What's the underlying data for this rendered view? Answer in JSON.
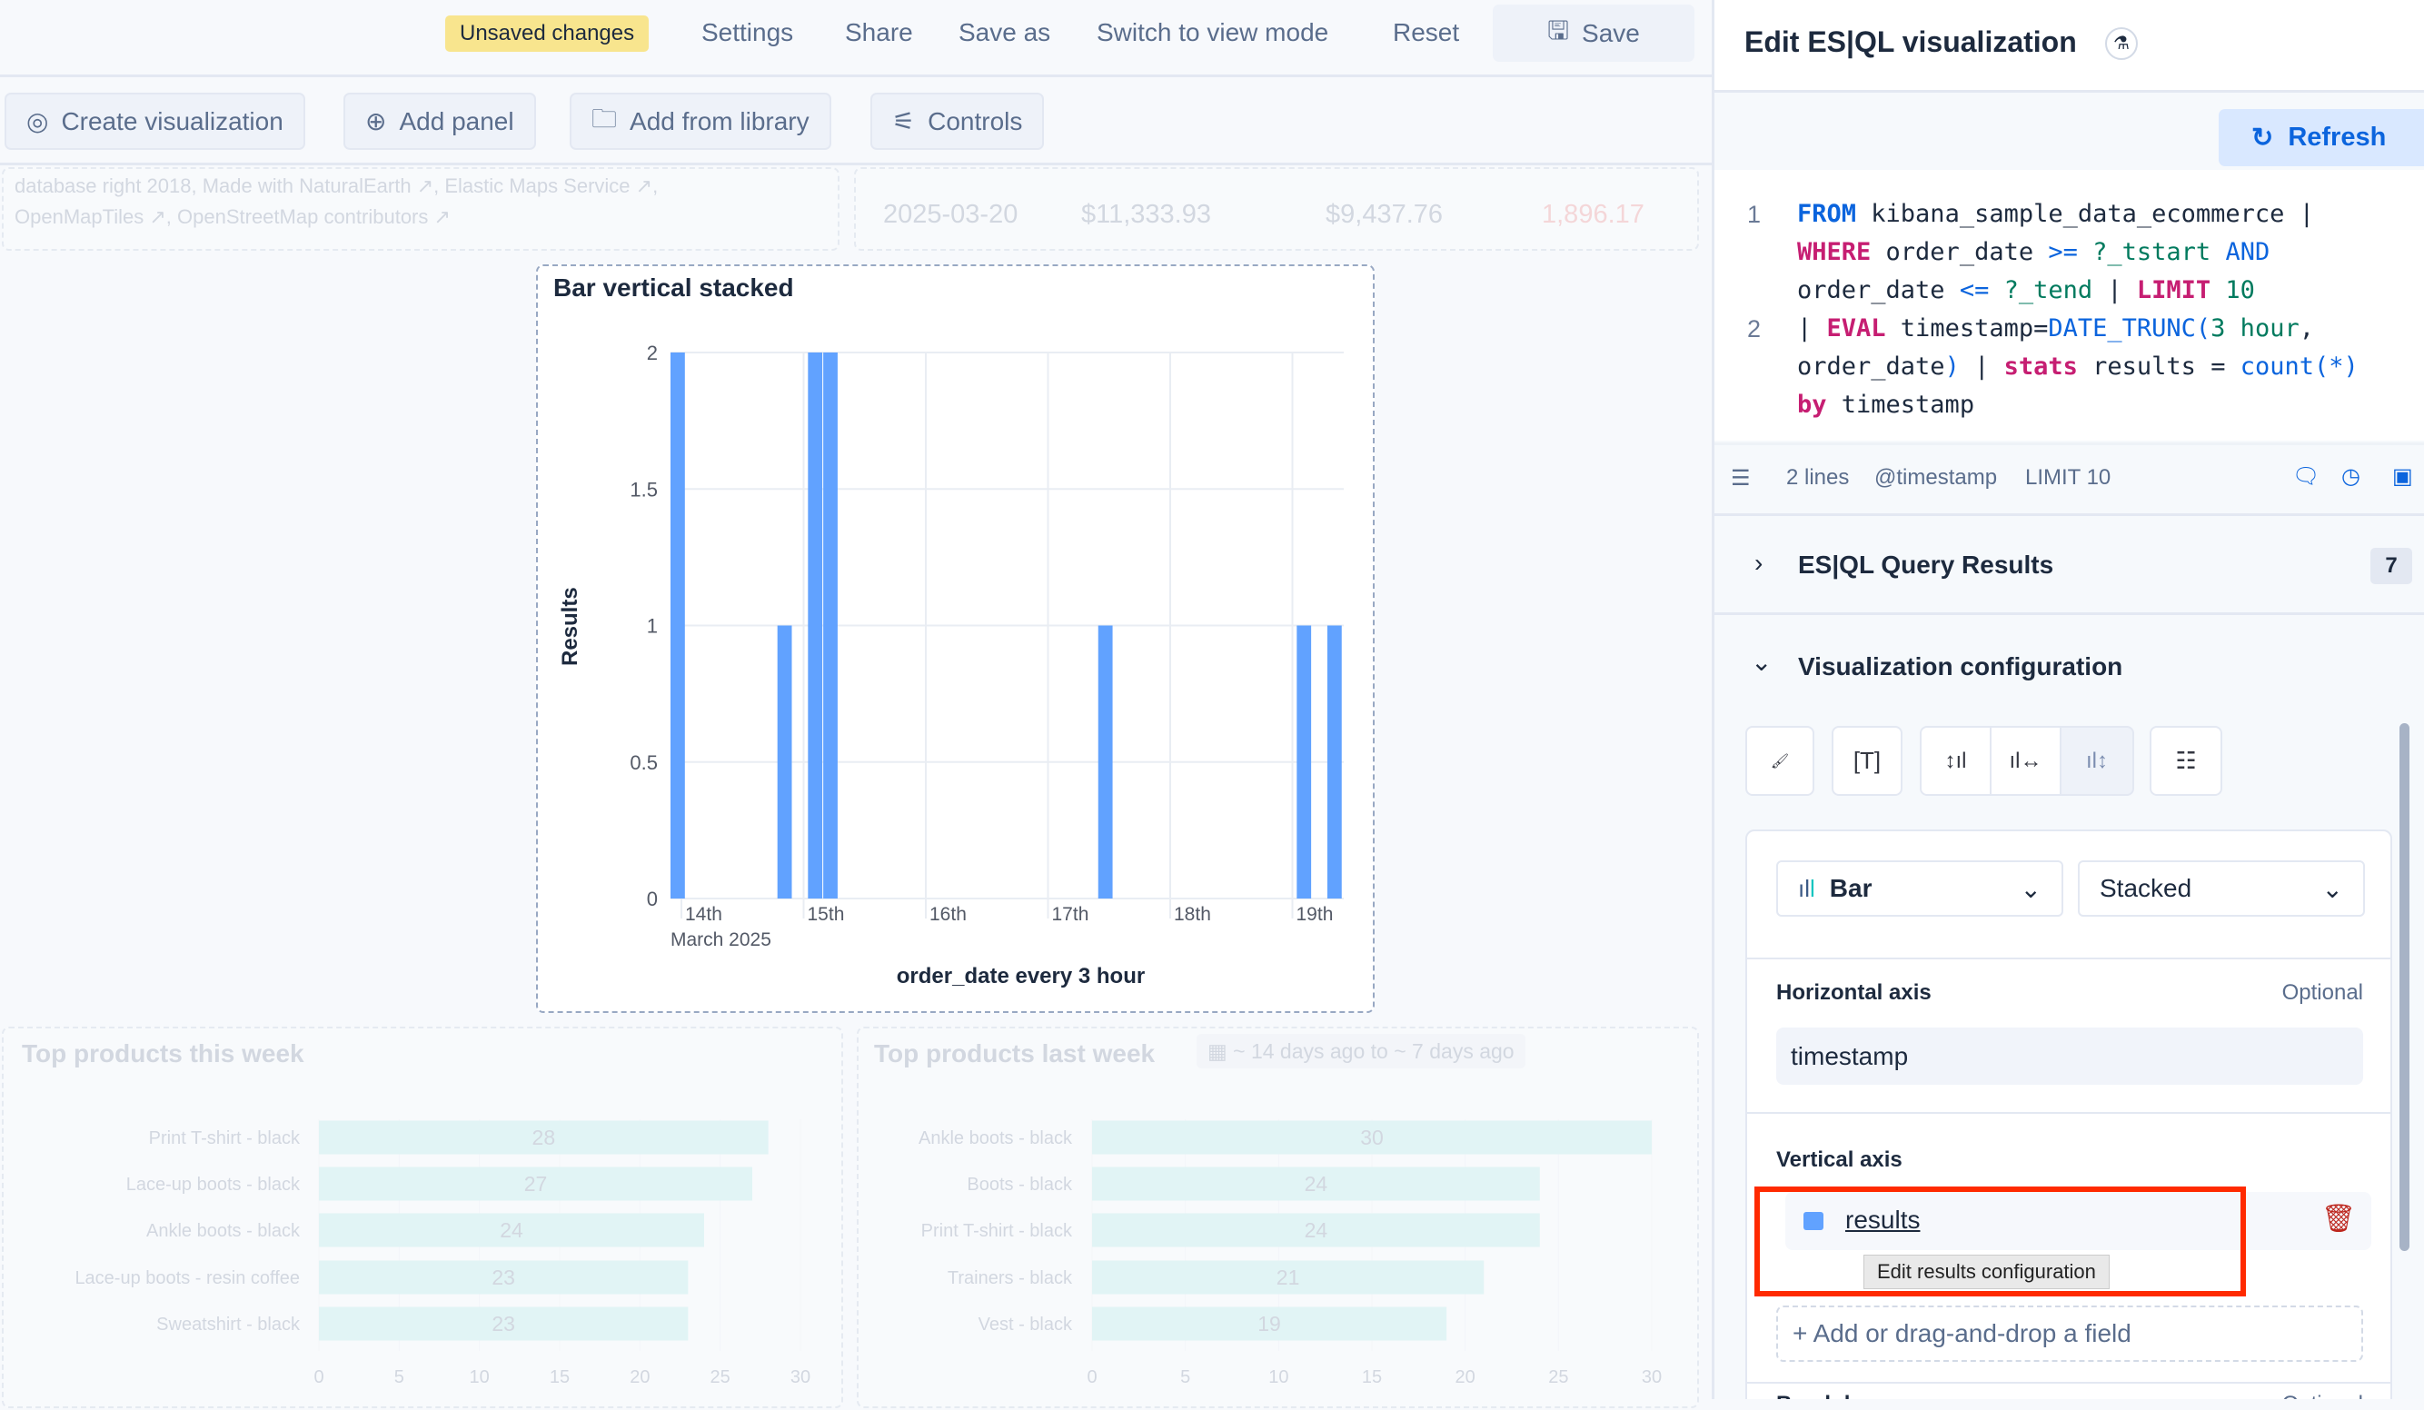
{
  "topbar": {
    "unsaved": "Unsaved changes",
    "settings": "Settings",
    "share": "Share",
    "save_as": "Save as",
    "switch_mode": "Switch to view mode",
    "reset": "Reset",
    "save": "Save"
  },
  "toolbar": {
    "create_viz": "Create visualization",
    "add_panel": "Add panel",
    "add_library": "Add from library",
    "controls": "Controls"
  },
  "map_panel": {
    "attribution_1": "database right 2018, Made with NaturalEarth ↗, Elastic Maps Service ↗,",
    "attribution_2": "OpenMapTiles ↗, OpenStreetMap contributors ↗"
  },
  "table_panel": {
    "row": [
      "2025-03-20",
      "$11,333.93",
      "$9,437.76",
      "1,896.17"
    ]
  },
  "chart_data": [
    {
      "type": "bar",
      "title": "Bar vertical stacked",
      "xlabel": "order_date every 3 hour",
      "ylabel": "Results",
      "ylim": [
        0,
        2
      ],
      "yticks": [
        "0",
        "0.5",
        "1",
        "1.5",
        "2"
      ],
      "xticks": [
        "14th",
        "15th",
        "16th",
        "17th",
        "18th",
        "19th"
      ],
      "xsublabel": "March 2025",
      "color": "#61a2ff",
      "grid": true,
      "x": [
        "2025-03-14 00:00",
        "2025-03-14 21:00",
        "2025-03-15 03:00",
        "2025-03-15 06:00",
        "2025-03-17 12:00",
        "2025-03-19 03:00",
        "2025-03-19 09:00"
      ],
      "values": [
        2,
        1,
        2,
        2,
        1,
        1,
        1
      ]
    },
    {
      "type": "bar",
      "orientation": "horizontal",
      "title": "Top products this week",
      "categories": [
        "Print T-shirt - black",
        "Lace-up boots - black",
        "Ankle boots - black",
        "Lace-up boots - resin coffee",
        "Sweatshirt - black"
      ],
      "values": [
        28,
        27,
        24,
        23,
        23
      ],
      "xlim": [
        0,
        30
      ],
      "xticks": [
        "0",
        "5",
        "10",
        "15",
        "20",
        "25",
        "30"
      ],
      "color": "#bfecea"
    },
    {
      "type": "bar",
      "orientation": "horizontal",
      "title": "Top products last week",
      "badge": "~ 14 days ago to ~ 7 days ago",
      "categories": [
        "Ankle boots - black",
        "Boots - black",
        "Print T-shirt - black",
        "Trainers - black",
        "Vest - black"
      ],
      "values": [
        30,
        24,
        24,
        21,
        19
      ],
      "xlim": [
        0,
        30
      ],
      "xticks": [
        "0",
        "5",
        "10",
        "15",
        "20",
        "25",
        "30"
      ],
      "color": "#bfecea"
    }
  ],
  "flyout": {
    "title": "Edit ES|QL visualization",
    "refresh": "Refresh",
    "code": [
      {
        "num": "1",
        "rows": [
          [
            [
              "FROM",
              "source"
            ],
            [
              " kibana_sample_data_ecommerce |",
              "plain"
            ]
          ],
          [
            [
              "WHERE",
              "command"
            ],
            [
              " order_date ",
              "plain"
            ],
            [
              ">=",
              "operator"
            ],
            [
              " ?_tstart ",
              "param"
            ],
            [
              "AND",
              "operator"
            ]
          ],
          [
            [
              "order_date ",
              "plain"
            ],
            [
              "<=",
              "operator"
            ],
            [
              " ?_tend ",
              "param"
            ],
            [
              "| ",
              "plain"
            ],
            [
              "LIMIT",
              "command"
            ],
            [
              " 10",
              "param"
            ]
          ]
        ]
      },
      {
        "num": "2",
        "rows": [
          [
            [
              "| ",
              "plain"
            ],
            [
              "EVAL",
              "command"
            ],
            [
              " timestamp=",
              "plain"
            ],
            [
              "DATE_TRUNC(",
              "function"
            ],
            [
              "3 hour",
              "param"
            ],
            [
              ",",
              "plain"
            ]
          ],
          [
            [
              "order_date",
              "plain"
            ],
            [
              ")",
              "function"
            ],
            [
              " | ",
              "plain"
            ],
            [
              "stats",
              "command"
            ],
            [
              " results = ",
              "plain"
            ],
            [
              "count(*)",
              "function"
            ]
          ],
          [
            [
              "by",
              "command"
            ],
            [
              " timestamp",
              "plain"
            ]
          ]
        ]
      }
    ],
    "footer": {
      "lines": "2 lines",
      "timestamp": "@timestamp",
      "limit": "LIMIT 10"
    },
    "results": {
      "label": "ES|QL Query Results",
      "count": "7"
    },
    "config": {
      "label": "Visualization configuration",
      "chart_type": "Bar",
      "mode": "Stacked",
      "h_axis": "Horizontal axis",
      "h_optional": "Optional",
      "h_value": "timestamp",
      "v_axis": "Vertical axis",
      "v_value": "results",
      "v_color": "#61a2ff",
      "add_field": "Add or drag-and-drop a field",
      "tooltip": "Edit results configuration",
      "breakdown": "Breakdown",
      "b_optional": "Optional"
    }
  }
}
